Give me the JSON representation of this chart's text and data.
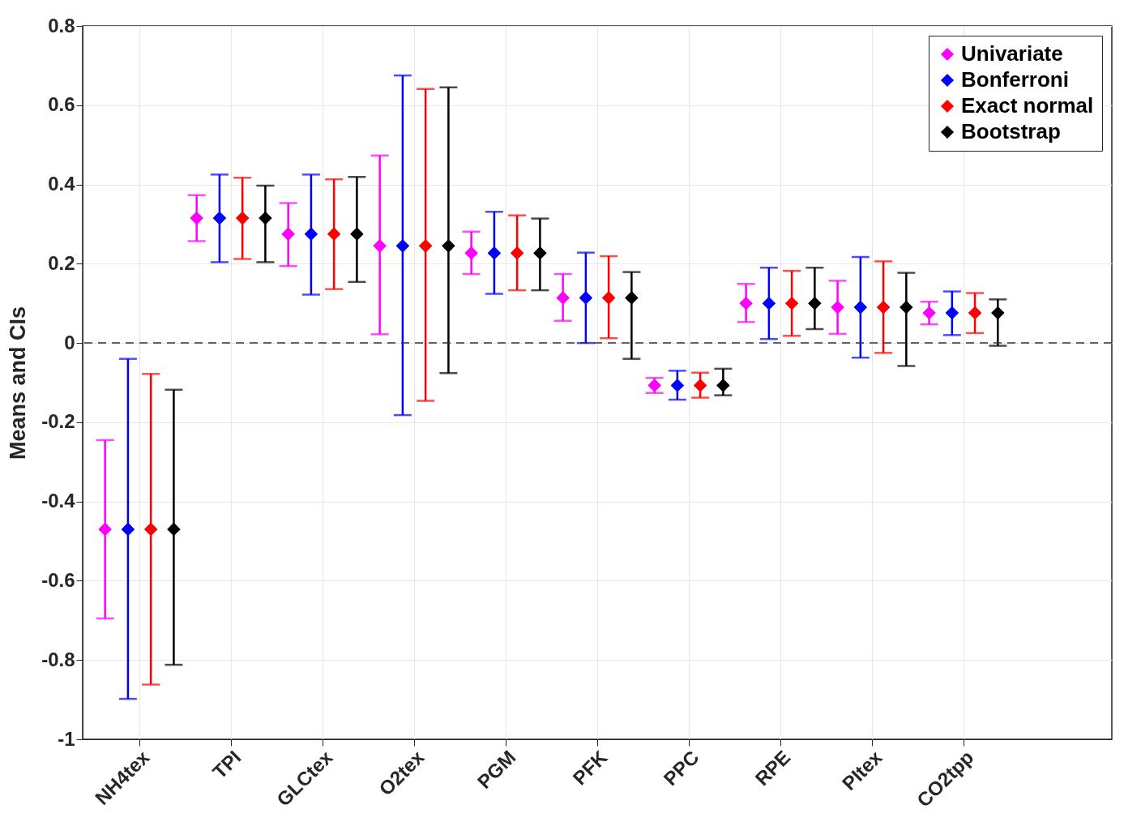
{
  "chart_data": {
    "type": "scatter",
    "ylabel": "Means and CIs",
    "categories": [
      "NH4tex",
      "TPI",
      "GLCtex",
      "O2tex",
      "PGM",
      "PFK",
      "PPC",
      "RPE",
      "PItex",
      "CO2tpp"
    ],
    "ylim": [
      -1,
      0.8
    ],
    "yticks": [
      -1,
      -0.8,
      -0.6,
      -0.4,
      -0.2,
      0,
      0.2,
      0.4,
      0.6,
      0.8
    ],
    "grid": true,
    "legend": "top right",
    "marker": "diamond",
    "ref_lines": [
      {
        "axis": "y",
        "value": 0,
        "line_style": "dashed",
        "color": "#333333"
      }
    ],
    "series": [
      {
        "name": "Univariate",
        "color": "#ff00ff",
        "values": [
          -0.47,
          0.315,
          0.275,
          0.245,
          0.227,
          0.114,
          -0.107,
          0.1,
          0.09,
          0.076
        ],
        "errors": [
          [
            -0.695,
            -0.245
          ],
          [
            0.257,
            0.373
          ],
          [
            0.194,
            0.353
          ],
          [
            0.022,
            0.473
          ],
          [
            0.174,
            0.281
          ],
          [
            0.056,
            0.174
          ],
          [
            -0.126,
            -0.088
          ],
          [
            0.053,
            0.149
          ],
          [
            0.023,
            0.157
          ],
          [
            0.047,
            0.104
          ]
        ]
      },
      {
        "name": "Bonferroni",
        "color": "#0000ff",
        "values": [
          -0.47,
          0.315,
          0.275,
          0.245,
          0.227,
          0.114,
          -0.107,
          0.1,
          0.09,
          0.076
        ],
        "errors": [
          [
            -0.898,
            -0.04
          ],
          [
            0.204,
            0.425
          ],
          [
            0.122,
            0.425
          ],
          [
            -0.182,
            0.675
          ],
          [
            0.124,
            0.331
          ],
          [
            0.0,
            0.228
          ],
          [
            -0.143,
            -0.07
          ],
          [
            0.01,
            0.19
          ],
          [
            -0.037,
            0.217
          ],
          [
            0.02,
            0.13
          ]
        ]
      },
      {
        "name": "Exact normal",
        "color": "#ff0000",
        "values": [
          -0.47,
          0.315,
          0.275,
          0.245,
          0.227,
          0.114,
          -0.107,
          0.1,
          0.09,
          0.076
        ],
        "errors": [
          [
            -0.862,
            -0.078
          ],
          [
            0.212,
            0.417
          ],
          [
            0.136,
            0.413
          ],
          [
            -0.146,
            0.641
          ],
          [
            0.133,
            0.322
          ],
          [
            0.012,
            0.219
          ],
          [
            -0.138,
            -0.075
          ],
          [
            0.018,
            0.182
          ],
          [
            -0.025,
            0.206
          ],
          [
            0.025,
            0.126
          ]
        ]
      },
      {
        "name": "Bootstrap",
        "color": "#000000",
        "values": [
          -0.47,
          0.315,
          0.275,
          0.245,
          0.227,
          0.114,
          -0.107,
          0.1,
          0.09,
          0.076
        ],
        "errors": [
          [
            -0.812,
            -0.118
          ],
          [
            0.204,
            0.397
          ],
          [
            0.154,
            0.419
          ],
          [
            -0.076,
            0.645
          ],
          [
            0.133,
            0.314
          ],
          [
            -0.04,
            0.179
          ],
          [
            -0.132,
            -0.065
          ],
          [
            0.035,
            0.19
          ],
          [
            -0.058,
            0.177
          ],
          [
            -0.007,
            0.11
          ]
        ]
      }
    ]
  }
}
